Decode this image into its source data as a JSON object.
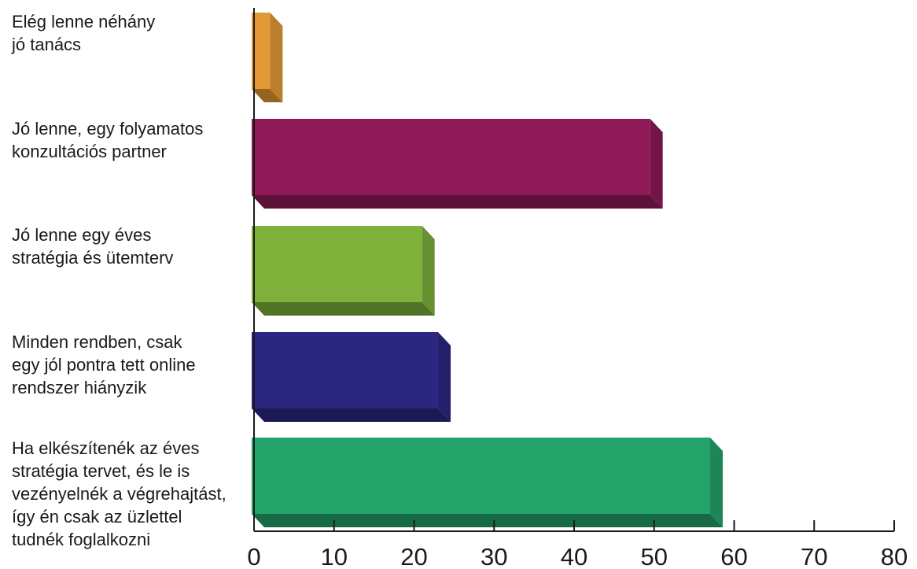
{
  "chart_data": {
    "type": "bar",
    "orientation": "horizontal",
    "style": "3d",
    "categories": [
      [
        "Elég lenne néhány",
        "jó tanács"
      ],
      [
        "Jó lenne, egy folyamatos",
        "konzultációs partner"
      ],
      [
        "Jó lenne egy éves",
        "stratégia és ütemterv"
      ],
      [
        "Minden rendben, csak",
        "egy jól pontra tett online",
        "rendszer hiányzik"
      ],
      [
        "Ha elkészítenék az éves",
        "stratégia tervet, és le is",
        "vezényelnék a végrehajtást,",
        "így én csak az üzlettel",
        "tudnék foglalkozni"
      ]
    ],
    "values": [
      2,
      49.5,
      21,
      23,
      57
    ],
    "colors": [
      "#e39a36",
      "#8e1a57",
      "#7eb03a",
      "#2b2781",
      "#23a36a"
    ],
    "xlim": [
      0,
      80
    ],
    "xticks": [
      "0",
      "10",
      "20",
      "30",
      "40",
      "50",
      "60",
      "70",
      "80"
    ],
    "grid": false,
    "legend": "none"
  }
}
